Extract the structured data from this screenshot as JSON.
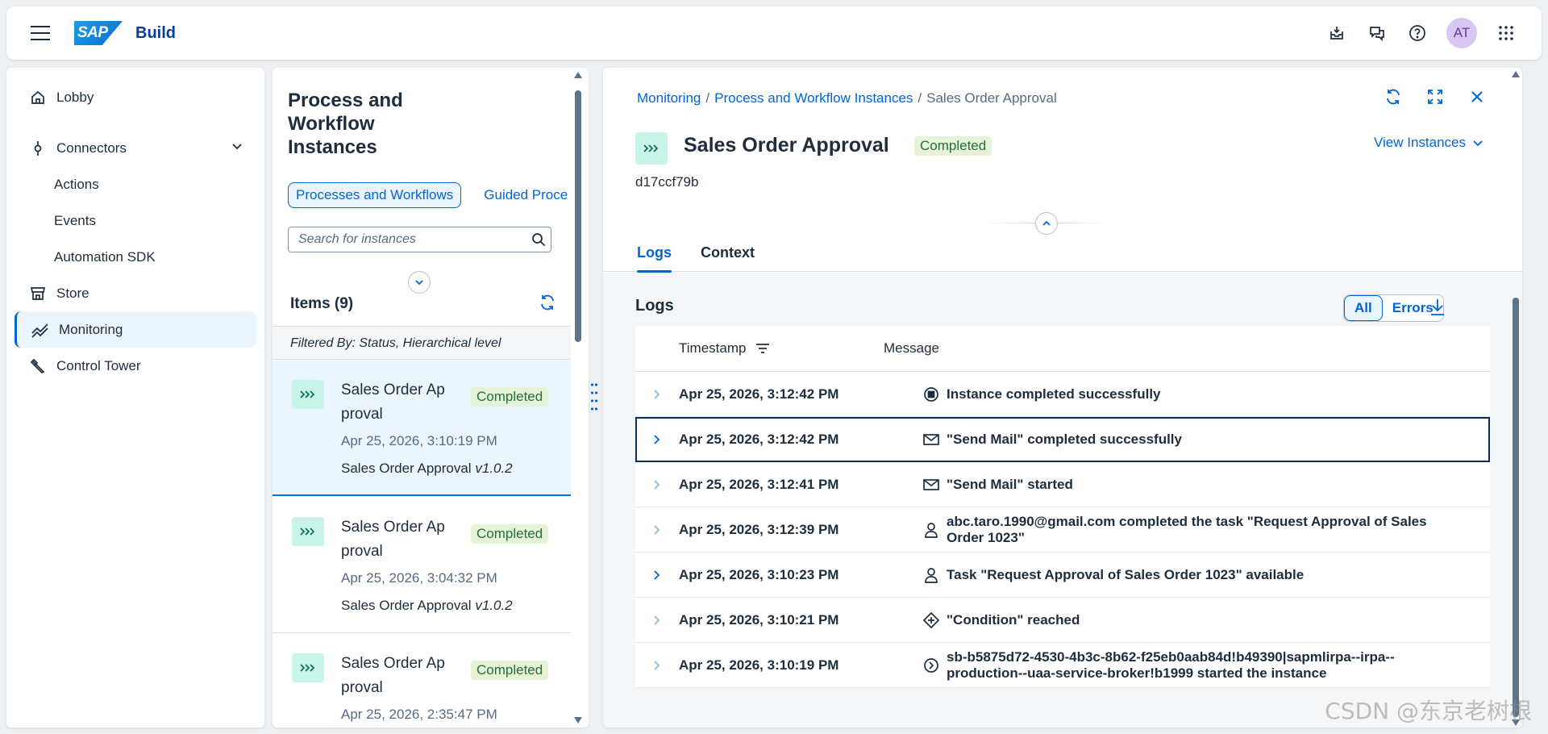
{
  "shell": {
    "brand": "Build",
    "logo_text": "SAP",
    "avatar_initials": "AT",
    "icons": [
      "inbox-icon",
      "chat-icon",
      "help-icon",
      "avatar",
      "grid-icon"
    ]
  },
  "sidenav": {
    "items": [
      {
        "label": "Lobby",
        "icon": "home-icon"
      },
      {
        "label": "Connectors",
        "icon": "connector-icon"
      },
      {
        "label": "Actions"
      },
      {
        "label": "Events"
      },
      {
        "label": "Automation SDK"
      },
      {
        "label": "Store",
        "icon": "store-icon"
      },
      {
        "label": "Monitoring",
        "icon": "monitoring-icon",
        "active": true
      },
      {
        "label": "Control Tower",
        "icon": "tools-icon"
      }
    ]
  },
  "list": {
    "title": "Process and Workflow Instances",
    "segments": [
      "Processes and Workflows",
      "Guided Proce"
    ],
    "search_placeholder": "Search for instances",
    "items_label": "Items (9)",
    "filter_text": "Filtered By: Status, Hierarchical level",
    "cards": [
      {
        "name": "Sales Order Ap proval",
        "status": "Completed",
        "date": "Apr 25, 2026, 3:10:19 PM",
        "def": "Sales Order Approval",
        "version": "v1.0.2"
      },
      {
        "name": "Sales Order Ap proval",
        "status": "Completed",
        "date": "Apr 25, 2026, 3:04:32 PM",
        "def": "Sales Order Approval",
        "version": "v1.0.2"
      },
      {
        "name": "Sales Order Ap proval",
        "status": "Completed",
        "date": "Apr 25, 2026, 2:35:47 PM",
        "def": "",
        "version": ""
      }
    ]
  },
  "detail": {
    "breadcrumb": [
      "Monitoring",
      "Process and Workflow Instances",
      "Sales Order Approval"
    ],
    "title": "Sales Order Approval",
    "status": "Completed",
    "id": "d17ccf79b",
    "view_instances": "View Instances",
    "tabs": [
      "Logs",
      "Context"
    ],
    "logs_heading": "Logs",
    "toggle": [
      "All",
      "Errors"
    ],
    "columns": [
      "Timestamp",
      "Message"
    ],
    "rows": [
      {
        "ts": "Apr 25, 2026, 3:12:42 PM",
        "icon": "stop-icon",
        "msg": "Instance completed successfully"
      },
      {
        "ts": "Apr 25, 2026, 3:12:42 PM",
        "icon": "mail-icon",
        "msg": "\"Send Mail\" completed successfully"
      },
      {
        "ts": "Apr 25, 2026, 3:12:41 PM",
        "icon": "mail-icon",
        "msg": "\"Send Mail\" started"
      },
      {
        "ts": "Apr 25, 2026, 3:12:39 PM",
        "icon": "person-icon",
        "msg": "abc.taro.1990@gmail.com completed the task \"Request Approval of Sales Order 1023\""
      },
      {
        "ts": "Apr 25, 2026, 3:10:23 PM",
        "icon": "person-icon",
        "msg": "Task \"Request Approval of Sales Order 1023\" available"
      },
      {
        "ts": "Apr 25, 2026, 3:10:21 PM",
        "icon": "condition-icon",
        "msg": "\"Condition\" reached"
      },
      {
        "ts": "Apr 25, 2026, 3:10:19 PM",
        "icon": "start-icon",
        "msg": "sb-b5875d72-4530-4b3c-8b62-f25eb0aab84d!b49390|sapmlirpa--irpa--production--uaa-service-broker!b1999 started the instance"
      }
    ]
  },
  "watermark": "CSDN @东京老树根"
}
